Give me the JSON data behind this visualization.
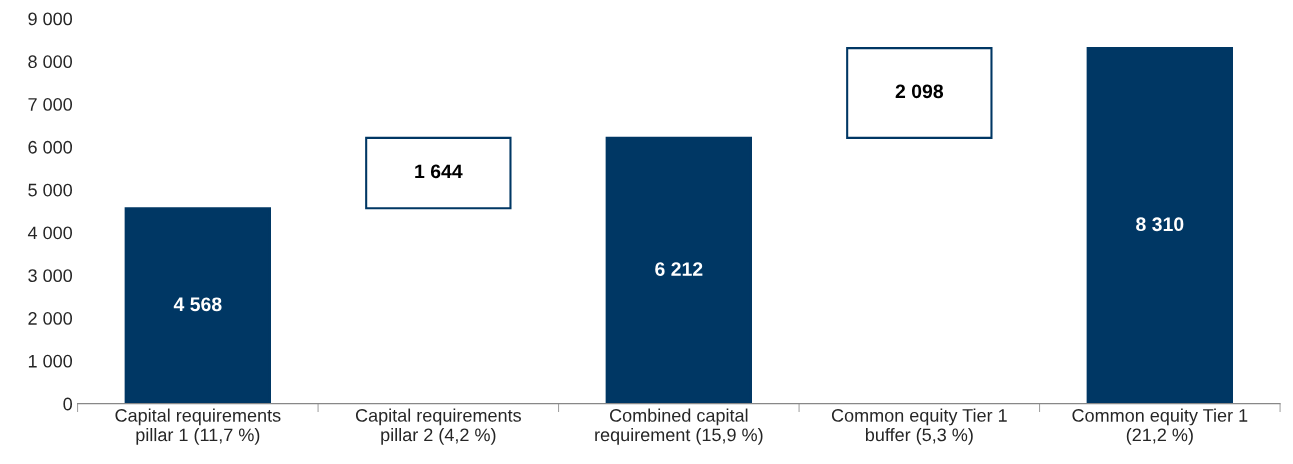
{
  "chart_data": {
    "type": "bar",
    "categories": [
      "Capital requirements\npillar 1 (11,7 %)",
      "Capital requirements\npillar 2 (4,2 %)",
      "Combined capital\nrequirement (15,9 %)",
      "Common equity Tier 1\nbuffer (5,3 %)",
      "Common equity Tier 1\n(21,2 %)"
    ],
    "values": [
      4568,
      1644,
      6212,
      2098,
      8310
    ],
    "base": [
      0,
      4568,
      0,
      6212,
      0
    ],
    "color": "#003764",
    "colors": [
      "#003764",
      "#ffffff",
      "#003764",
      "#ffffff",
      "#003764"
    ],
    "value_labels": [
      "4 568",
      "1 644",
      "6 212",
      "2 098",
      "8 310"
    ],
    "ylim": [
      0,
      9000
    ],
    "yticks": [
      {
        "value": 0,
        "label": "0"
      },
      {
        "value": 1000,
        "label": "1 000"
      },
      {
        "value": 2000,
        "label": "2 000"
      },
      {
        "value": 3000,
        "label": "3 000"
      },
      {
        "value": 4000,
        "label": "4 000"
      },
      {
        "value": 5000,
        "label": "5 000"
      },
      {
        "value": 6000,
        "label": "6 000"
      },
      {
        "value": 7000,
        "label": "7 000"
      },
      {
        "value": 8000,
        "label": "8 000"
      },
      {
        "value": 9000,
        "label": "9 000"
      }
    ],
    "grid": false,
    "legend": false
  }
}
